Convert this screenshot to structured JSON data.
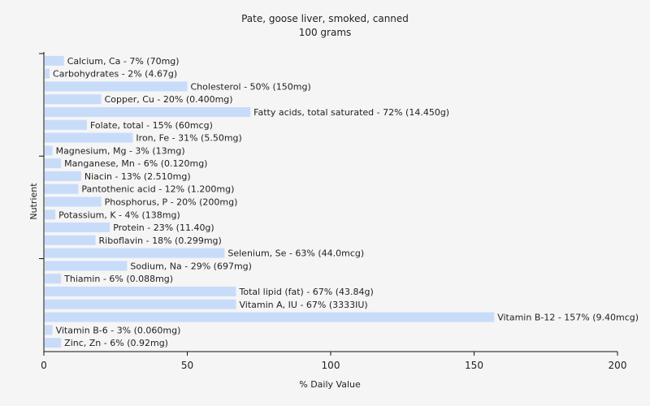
{
  "chart_data": {
    "type": "bar",
    "orientation": "horizontal",
    "title": "Pate, goose liver, smoked, canned",
    "subtitle": "100 grams",
    "xlabel": "% Daily Value",
    "ylabel": "Nutrient",
    "xlim": [
      0,
      200
    ],
    "xticks": [
      "0",
      "50",
      "100",
      "150",
      "200"
    ],
    "grid": false,
    "bar_color": "#c8dcfa",
    "background": "#f5f5f5",
    "categories": [
      "Calcium, Ca",
      "Carbohydrates",
      "Cholesterol",
      "Copper, Cu",
      "Fatty acids, total saturated",
      "Folate, total",
      "Iron, Fe",
      "Magnesium, Mg",
      "Manganese, Mn",
      "Niacin",
      "Pantothenic acid",
      "Phosphorus, P",
      "Potassium, K",
      "Protein",
      "Riboflavin",
      "Selenium, Se",
      "Sodium, Na",
      "Thiamin",
      "Total lipid (fat)",
      "Vitamin A, IU",
      "Vitamin B-12",
      "Vitamin B-6",
      "Zinc, Zn"
    ],
    "values": [
      7,
      2,
      50,
      20,
      72,
      15,
      31,
      3,
      6,
      13,
      12,
      20,
      4,
      23,
      18,
      63,
      29,
      6,
      67,
      67,
      157,
      3,
      6
    ],
    "labels": [
      "Calcium, Ca - 7% (70mg)",
      "Carbohydrates - 2% (4.67g)",
      "Cholesterol - 50% (150mg)",
      "Copper, Cu - 20% (0.400mg)",
      "Fatty acids, total saturated - 72% (14.450g)",
      "Folate, total - 15% (60mcg)",
      "Iron, Fe - 31% (5.50mg)",
      "Magnesium, Mg - 3% (13mg)",
      "Manganese, Mn - 6% (0.120mg)",
      "Niacin - 13% (2.510mg)",
      "Pantothenic acid - 12% (1.200mg)",
      "Phosphorus, P - 20% (200mg)",
      "Potassium, K - 4% (138mg)",
      "Protein - 23% (11.40g)",
      "Riboflavin - 18% (0.299mg)",
      "Selenium, Se - 63% (44.0mcg)",
      "Sodium, Na - 29% (697mg)",
      "Thiamin - 6% (0.088mg)",
      "Total lipid (fat) - 67% (43.84g)",
      "Vitamin A, IU - 67% (3333IU)",
      "Vitamin B-12 - 157% (9.40mcg)",
      "Vitamin B-6 - 3% (0.060mg)",
      "Zinc, Zn - 6% (0.92mg)"
    ]
  }
}
